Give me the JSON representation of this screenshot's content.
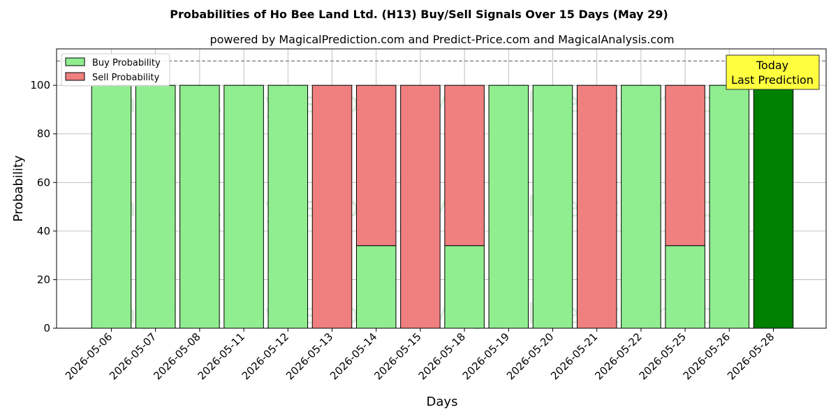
{
  "chart_data": {
    "type": "bar",
    "title": "Probabilities of Ho Bee Land Ltd. (H13) Buy/Sell Signals Over 15 Days (May 29)",
    "subtitle": "powered by MagicalPrediction.com and Predict-Price.com and MagicalAnalysis.com",
    "xlabel": "Days",
    "ylabel": "Probability",
    "ylim": [
      0,
      115
    ],
    "yticks": [
      0,
      20,
      40,
      60,
      80,
      100
    ],
    "grid": true,
    "reference_line": 110,
    "legend_position": "top-left",
    "categories": [
      "2026-05-06",
      "2026-05-07",
      "2026-05-08",
      "2026-05-11",
      "2026-05-12",
      "2026-05-13",
      "2026-05-14",
      "2026-05-15",
      "2026-05-18",
      "2026-05-19",
      "2026-05-20",
      "2026-05-21",
      "2026-05-22",
      "2026-05-25",
      "2026-05-26",
      "2026-05-28"
    ],
    "series": [
      {
        "name": "Buy Probability",
        "color": "#90ee90",
        "values": [
          100,
          100,
          100,
          100,
          100,
          0,
          34,
          0,
          34,
          100,
          100,
          0,
          100,
          34,
          100,
          100
        ]
      },
      {
        "name": "Sell Probability",
        "color": "#f08080",
        "values": [
          0,
          0,
          0,
          0,
          0,
          100,
          66,
          100,
          66,
          0,
          0,
          100,
          0,
          66,
          0,
          0
        ]
      }
    ],
    "highlight": {
      "index": 15,
      "color": "#008000"
    },
    "annotation": {
      "lines": [
        "Today",
        "Last Prediction"
      ],
      "bg": "#ffff40"
    },
    "watermarks": [
      "MagicalAnalysis.com",
      "MagicalPrediction.com"
    ]
  }
}
